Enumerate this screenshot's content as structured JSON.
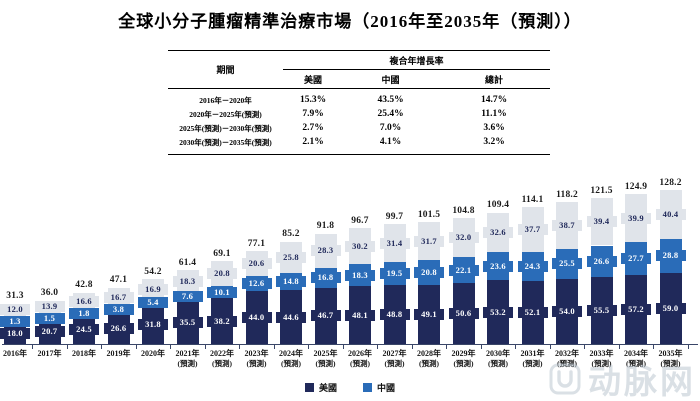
{
  "title": "全球小分子腫瘤精準治療市場（2016年至2035年（預測））",
  "table": {
    "period_header": "期間",
    "cagr_header": "複合年增長率",
    "columns": [
      "美國",
      "中國",
      "總計"
    ],
    "rows": [
      {
        "period": "2016年－2020年",
        "us": "15.3%",
        "cn": "43.5%",
        "total": "14.7%"
      },
      {
        "period": "2020年－2025年(預測)",
        "us": "7.9%",
        "cn": "25.4%",
        "total": "11.1%"
      },
      {
        "period": "2025年(預測)－2030年(預測)",
        "us": "2.7%",
        "cn": "7.0%",
        "total": "3.6%"
      },
      {
        "period": "2030年(預測)－2035年(預測)",
        "us": "2.1%",
        "cn": "4.1%",
        "total": "3.2%"
      }
    ]
  },
  "chart_data": {
    "type": "bar",
    "stacked": true,
    "categories": [
      "2016年",
      "2017年",
      "2018年",
      "2019年",
      "2020年",
      "2021年",
      "2022年",
      "2023年",
      "2024年",
      "2025年",
      "2026年",
      "2027年",
      "2028年",
      "2029年",
      "2030年",
      "2031年",
      "2032年",
      "2033年",
      "2034年",
      "2035年"
    ],
    "forecast_start_index": 5,
    "forecast_note": "(預測)",
    "series": [
      {
        "name": "美國",
        "color": "#20295a",
        "label_color": "#ffffff",
        "values": [
          18.0,
          20.7,
          24.5,
          26.6,
          31.8,
          35.5,
          38.2,
          44.0,
          44.6,
          46.7,
          48.1,
          48.8,
          49.1,
          50.6,
          53.2,
          52.1,
          54.0,
          55.5,
          57.2,
          59.0
        ]
      },
      {
        "name": "中國",
        "color": "#2a6cb8",
        "label_color": "#ffffff",
        "values": [
          1.3,
          1.5,
          1.8,
          3.8,
          5.4,
          7.6,
          10.1,
          12.6,
          14.8,
          16.8,
          18.3,
          19.5,
          20.8,
          22.1,
          23.6,
          24.3,
          25.5,
          26.6,
          27.7,
          28.8
        ]
      },
      {
        "name": "",
        "color": "#e0e4ea",
        "label_color": "#20295a",
        "values": [
          12.0,
          13.9,
          16.6,
          16.7,
          16.9,
          18.3,
          20.8,
          20.6,
          25.8,
          28.3,
          30.2,
          31.4,
          31.7,
          32.0,
          32.6,
          37.7,
          38.7,
          39.4,
          39.9,
          40.4
        ]
      }
    ],
    "totals": [
      31.3,
      36.0,
      42.8,
      47.1,
      54.2,
      61.4,
      69.1,
      77.1,
      85.2,
      91.8,
      96.7,
      99.7,
      101.5,
      104.8,
      109.4,
      114.1,
      118.2,
      121.5,
      124.9,
      128.2
    ],
    "ylim": [
      0,
      135
    ],
    "grid": false,
    "legend_position": "bottom"
  },
  "legend": {
    "items": [
      {
        "label": "美國",
        "color": "#20295a"
      },
      {
        "label": "中國",
        "color": "#2a6cb8"
      }
    ]
  },
  "watermark": {
    "text": "动脉网"
  }
}
